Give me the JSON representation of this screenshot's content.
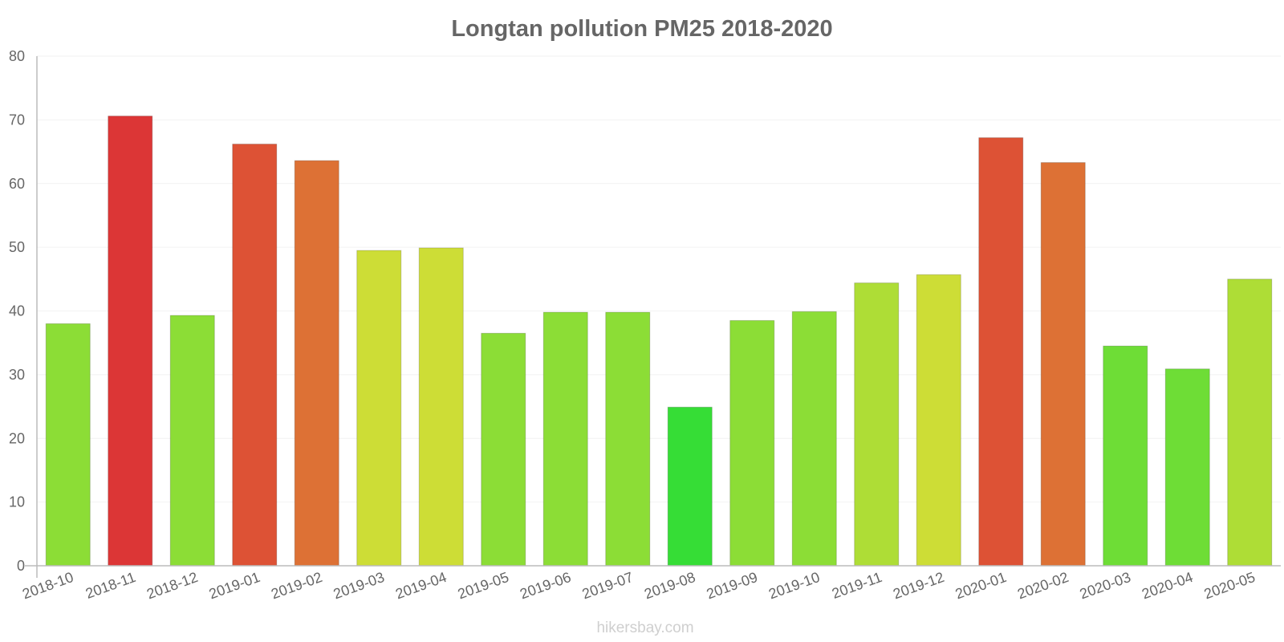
{
  "chart_data": {
    "type": "bar",
    "title": "Longtan pollution PM25 2018-2020",
    "xlabel": "",
    "ylabel": "",
    "ylim": [
      0,
      80
    ],
    "yticks": [
      "0",
      "10",
      "20",
      "30",
      "40",
      "50",
      "60",
      "70",
      "80"
    ],
    "grid": true,
    "categories": [
      "2018-10",
      "2018-11",
      "2018-12",
      "2019-01",
      "2019-02",
      "2019-03",
      "2019-04",
      "2019-05",
      "2019-06",
      "2019-07",
      "2019-08",
      "2019-09",
      "2019-10",
      "2019-11",
      "2019-12",
      "2020-01",
      "2020-02",
      "2020-03",
      "2020-04",
      "2020-05"
    ],
    "values": [
      38,
      70.6,
      39.3,
      66.2,
      63.6,
      49.5,
      49.9,
      36.5,
      39.8,
      39.8,
      24.9,
      38.5,
      39.9,
      44.4,
      45.7,
      67.2,
      63.3,
      34.5,
      30.9,
      45.0
    ],
    "colors": [
      "#8cdd36",
      "#dc3636",
      "#8cdd36",
      "#dd5235",
      "#dd7135",
      "#cddd36",
      "#cddd36",
      "#8cdd36",
      "#8cdd36",
      "#8cdd36",
      "#36dd36",
      "#8cdd36",
      "#8cdd36",
      "#aedd36",
      "#cddd36",
      "#dd5235",
      "#dd7135",
      "#6edd36",
      "#6edd36",
      "#aedd36"
    ]
  },
  "watermark": "hikersbay.com",
  "style": {
    "axis_color": "#bbbbbb",
    "grid_color": "#f2f2f2",
    "text_color": "#666666"
  }
}
